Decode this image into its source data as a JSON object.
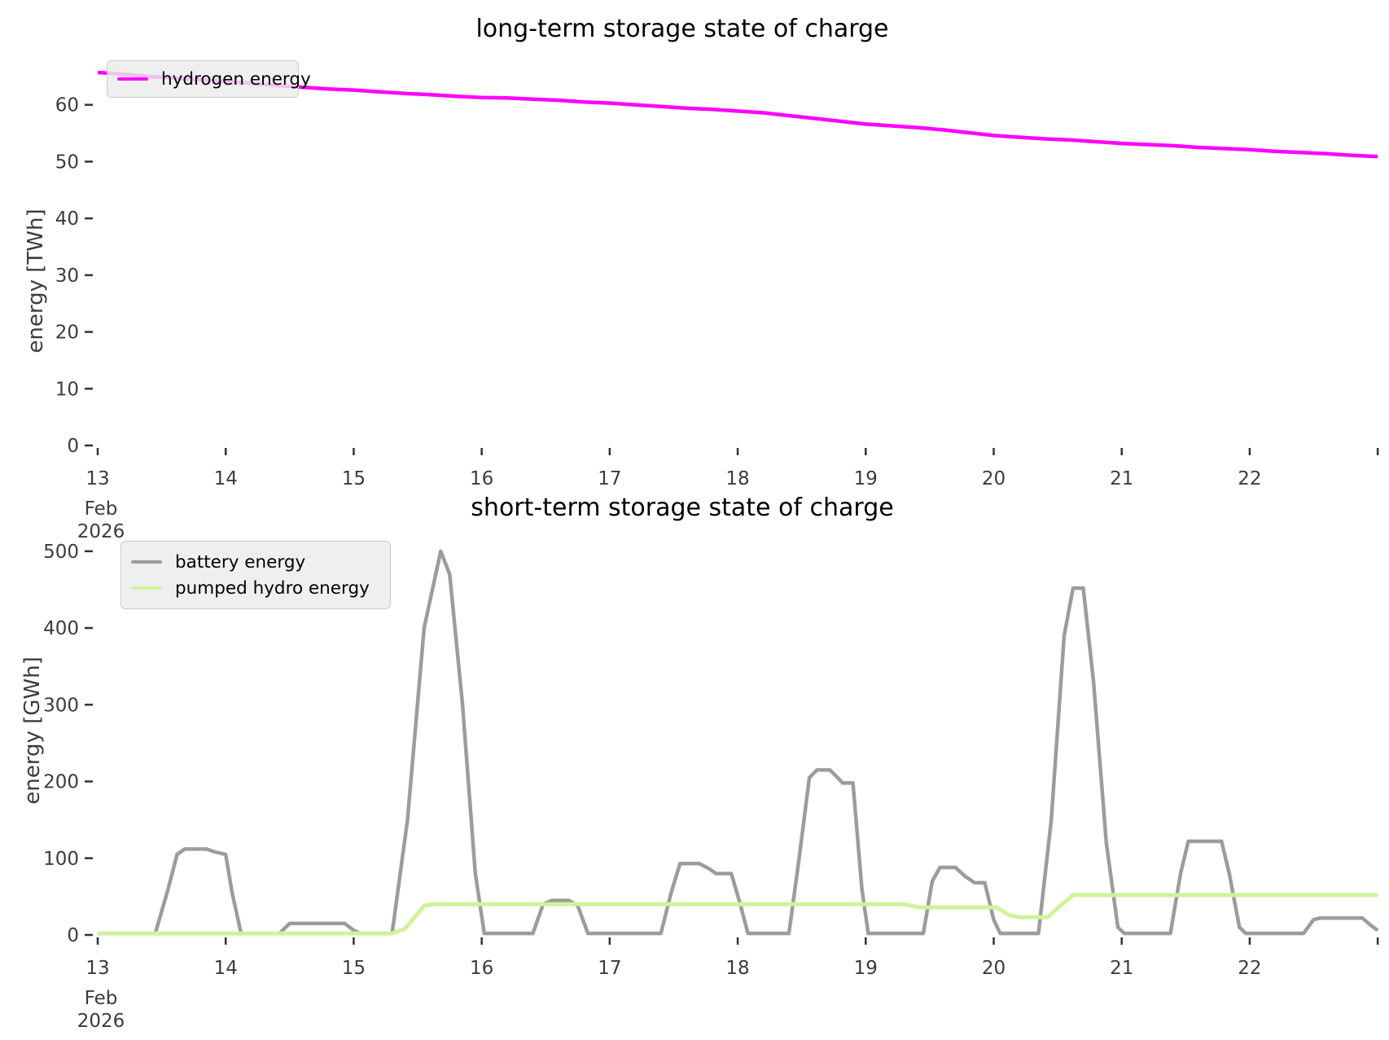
{
  "chart_data": [
    {
      "type": "line",
      "title": "long-term storage state of charge",
      "ylabel": "energy [TWh]",
      "xlabel": "",
      "x_unit": "day of month",
      "xlim": [
        13,
        23.05
      ],
      "ylim": [
        0,
        70
      ],
      "grid": false,
      "legend_position": "upper-left",
      "yticks": [
        0,
        10,
        20,
        30,
        40,
        50,
        60
      ],
      "xticks": [
        {
          "x": 13,
          "label": "13",
          "sub": [
            "Feb",
            "2026"
          ]
        },
        {
          "x": 14,
          "label": "14"
        },
        {
          "x": 15,
          "label": "15"
        },
        {
          "x": 16,
          "label": "16"
        },
        {
          "x": 17,
          "label": "17"
        },
        {
          "x": 18,
          "label": "18"
        },
        {
          "x": 19,
          "label": "19"
        },
        {
          "x": 20,
          "label": "20"
        },
        {
          "x": 21,
          "label": "21"
        },
        {
          "x": 22,
          "label": "22"
        },
        {
          "x": 23,
          "label": ""
        }
      ],
      "series": [
        {
          "name": "hydrogen energy",
          "color": "#ff00ff",
          "width": 4.5,
          "points": [
            [
              13.0,
              65.7
            ],
            [
              13.2,
              65.4
            ],
            [
              13.4,
              65.0
            ],
            [
              13.6,
              64.7
            ],
            [
              13.8,
              64.4
            ],
            [
              14.0,
              64.1
            ],
            [
              14.2,
              63.8
            ],
            [
              14.4,
              63.4
            ],
            [
              14.6,
              63.1
            ],
            [
              14.8,
              62.8
            ],
            [
              15.0,
              62.6
            ],
            [
              15.2,
              62.3
            ],
            [
              15.4,
              62.0
            ],
            [
              15.6,
              61.8
            ],
            [
              15.8,
              61.5
            ],
            [
              16.0,
              61.3
            ],
            [
              16.2,
              61.2
            ],
            [
              16.4,
              61.0
            ],
            [
              16.6,
              60.8
            ],
            [
              16.8,
              60.5
            ],
            [
              17.0,
              60.3
            ],
            [
              17.2,
              60.0
            ],
            [
              17.4,
              59.7
            ],
            [
              17.6,
              59.4
            ],
            [
              17.8,
              59.2
            ],
            [
              18.0,
              58.9
            ],
            [
              18.2,
              58.6
            ],
            [
              18.4,
              58.1
            ],
            [
              18.6,
              57.6
            ],
            [
              18.8,
              57.1
            ],
            [
              19.0,
              56.6
            ],
            [
              19.2,
              56.3
            ],
            [
              19.4,
              56.0
            ],
            [
              19.6,
              55.6
            ],
            [
              19.8,
              55.1
            ],
            [
              20.0,
              54.6
            ],
            [
              20.2,
              54.3
            ],
            [
              20.4,
              54.0
            ],
            [
              20.6,
              53.8
            ],
            [
              20.8,
              53.5
            ],
            [
              21.0,
              53.2
            ],
            [
              21.2,
              53.0
            ],
            [
              21.4,
              52.8
            ],
            [
              21.6,
              52.5
            ],
            [
              21.8,
              52.3
            ],
            [
              22.0,
              52.1
            ],
            [
              22.2,
              51.8
            ],
            [
              22.4,
              51.6
            ],
            [
              22.6,
              51.4
            ],
            [
              22.8,
              51.1
            ],
            [
              23.0,
              50.9
            ]
          ]
        }
      ]
    },
    {
      "type": "line",
      "title": "short-term storage state of charge",
      "ylabel": "energy [GWh]",
      "xlabel": "",
      "x_unit": "day of month",
      "xlim": [
        13,
        23.05
      ],
      "ylim": [
        0,
        520
      ],
      "grid": false,
      "legend_position": "upper-left",
      "yticks": [
        0,
        100,
        200,
        300,
        400,
        500
      ],
      "xticks": [
        {
          "x": 13,
          "label": "13",
          "sub": [
            "Feb",
            "2026"
          ]
        },
        {
          "x": 14,
          "label": "14"
        },
        {
          "x": 15,
          "label": "15"
        },
        {
          "x": 16,
          "label": "16"
        },
        {
          "x": 17,
          "label": "17"
        },
        {
          "x": 18,
          "label": "18"
        },
        {
          "x": 19,
          "label": "19"
        },
        {
          "x": 20,
          "label": "20"
        },
        {
          "x": 21,
          "label": "21"
        },
        {
          "x": 22,
          "label": "22"
        },
        {
          "x": 23,
          "label": ""
        }
      ],
      "series": [
        {
          "name": "battery energy",
          "color": "#9c9c9c",
          "width": 4.5,
          "points": [
            [
              13.0,
              2
            ],
            [
              13.45,
              2
            ],
            [
              13.55,
              60
            ],
            [
              13.62,
              105
            ],
            [
              13.68,
              112
            ],
            [
              13.85,
              112
            ],
            [
              13.92,
              108
            ],
            [
              14.0,
              105
            ],
            [
              14.05,
              55
            ],
            [
              14.12,
              2
            ],
            [
              14.42,
              2
            ],
            [
              14.5,
              15
            ],
            [
              14.93,
              15
            ],
            [
              15.0,
              6
            ],
            [
              15.05,
              2
            ],
            [
              15.3,
              2
            ],
            [
              15.42,
              150
            ],
            [
              15.55,
              400
            ],
            [
              15.68,
              500
            ],
            [
              15.75,
              470
            ],
            [
              15.85,
              300
            ],
            [
              15.95,
              80
            ],
            [
              16.02,
              2
            ],
            [
              16.4,
              2
            ],
            [
              16.48,
              40
            ],
            [
              16.55,
              45
            ],
            [
              16.68,
              45
            ],
            [
              16.75,
              38
            ],
            [
              16.83,
              2
            ],
            [
              17.4,
              2
            ],
            [
              17.48,
              55
            ],
            [
              17.55,
              93
            ],
            [
              17.7,
              93
            ],
            [
              17.78,
              86
            ],
            [
              17.83,
              80
            ],
            [
              17.95,
              80
            ],
            [
              18.02,
              40
            ],
            [
              18.08,
              2
            ],
            [
              18.4,
              2
            ],
            [
              18.48,
              100
            ],
            [
              18.56,
              205
            ],
            [
              18.62,
              215
            ],
            [
              18.72,
              215
            ],
            [
              18.78,
              205
            ],
            [
              18.82,
              198
            ],
            [
              18.9,
              198
            ],
            [
              18.97,
              60
            ],
            [
              19.02,
              2
            ],
            [
              19.45,
              2
            ],
            [
              19.52,
              70
            ],
            [
              19.58,
              88
            ],
            [
              19.7,
              88
            ],
            [
              19.78,
              76
            ],
            [
              19.85,
              68
            ],
            [
              19.93,
              68
            ],
            [
              20.0,
              20
            ],
            [
              20.05,
              2
            ],
            [
              20.35,
              2
            ],
            [
              20.45,
              150
            ],
            [
              20.55,
              390
            ],
            [
              20.62,
              452
            ],
            [
              20.7,
              452
            ],
            [
              20.78,
              330
            ],
            [
              20.88,
              120
            ],
            [
              20.97,
              10
            ],
            [
              21.02,
              2
            ],
            [
              21.38,
              2
            ],
            [
              21.46,
              80
            ],
            [
              21.52,
              122
            ],
            [
              21.78,
              122
            ],
            [
              21.84,
              80
            ],
            [
              21.92,
              10
            ],
            [
              21.97,
              2
            ],
            [
              22.42,
              2
            ],
            [
              22.5,
              20
            ],
            [
              22.55,
              22
            ],
            [
              22.88,
              22
            ],
            [
              22.95,
              12
            ],
            [
              23.0,
              6
            ]
          ]
        },
        {
          "name": "pumped hydro energy",
          "color": "#cff29c",
          "width": 5,
          "points": [
            [
              13.0,
              2
            ],
            [
              15.3,
              2
            ],
            [
              15.4,
              8
            ],
            [
              15.55,
              38
            ],
            [
              15.62,
              40
            ],
            [
              19.3,
              40
            ],
            [
              19.42,
              36
            ],
            [
              20.02,
              36
            ],
            [
              20.12,
              26
            ],
            [
              20.2,
              23
            ],
            [
              20.42,
              23
            ],
            [
              20.52,
              38
            ],
            [
              20.62,
              52
            ],
            [
              23.0,
              52
            ]
          ]
        }
      ]
    }
  ]
}
